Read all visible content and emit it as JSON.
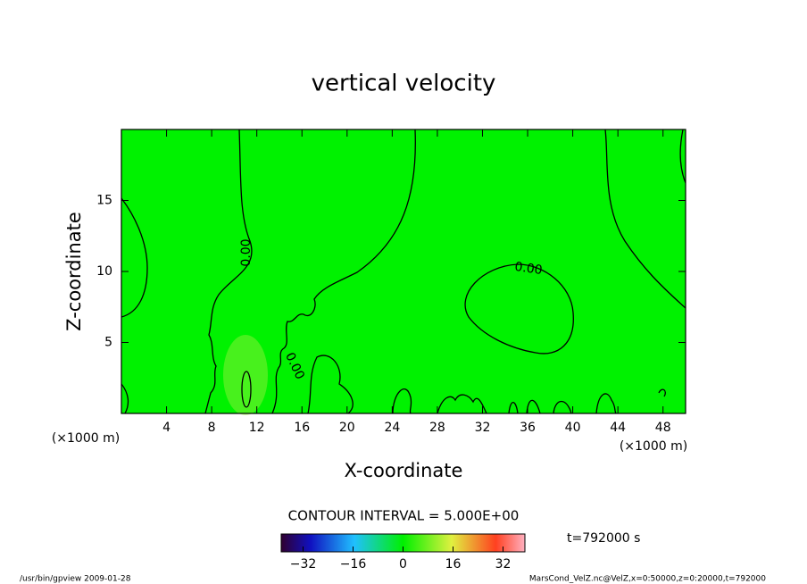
{
  "chart_data": {
    "type": "contour",
    "title": "vertical velocity",
    "x_label": "X-coordinate",
    "y_label": "Z-coordinate",
    "x_unit": "(×1000 m)",
    "y_unit": "(×1000 m)",
    "xlim": [
      0,
      50
    ],
    "xticks": [
      4,
      8,
      12,
      16,
      20,
      24,
      28,
      32,
      36,
      40,
      44,
      48
    ],
    "ylim": [
      0,
      20
    ],
    "yticks": [
      5,
      10,
      15
    ],
    "fill_color": "#00f200",
    "contour_level": 0,
    "contour_labels": [
      "0.00",
      "0.00",
      "0.00"
    ],
    "contour_interval_text": "CONTOUR INTERVAL = 5.000E+00",
    "time_text": "t=792000 s",
    "clim": [
      -39,
      39
    ],
    "cticks": [
      {
        "value": -32,
        "label": "−32"
      },
      {
        "value": -16,
        "label": "−16"
      },
      0,
      16,
      32
    ],
    "footer_left": "/usr/bin/gpview  2009-01-28",
    "footer_right": "MarsCond_VelZ.nc@VelZ,x=0:50000,z=0:20000,t=792000"
  }
}
